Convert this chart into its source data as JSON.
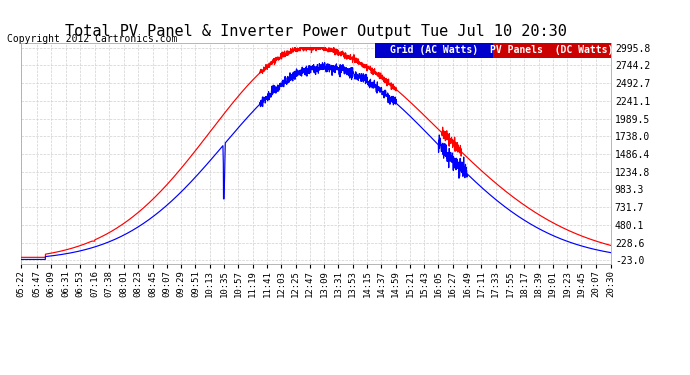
{
  "title": "Total PV Panel & Inverter Power Output Tue Jul 10 20:30",
  "copyright": "Copyright 2012 Cartronics.com",
  "legend_labels": [
    "Grid (AC Watts)",
    "PV Panels  (DC Watts)"
  ],
  "legend_bg_colors": [
    "#0000cc",
    "#cc0000"
  ],
  "legend_text_color": "#ffffff",
  "grid_color": "#cccccc",
  "grid_linestyle": "--",
  "background_color": "#ffffff",
  "plot_bg_color": "#ffffff",
  "yticks": [
    -23.0,
    228.6,
    480.1,
    731.7,
    983.3,
    1234.8,
    1486.4,
    1738.0,
    1989.5,
    2241.1,
    2492.7,
    2744.2,
    2995.8
  ],
  "xtick_labels": [
    "05:22",
    "05:47",
    "06:09",
    "06:31",
    "06:53",
    "07:16",
    "07:38",
    "08:01",
    "08:23",
    "08:45",
    "09:07",
    "09:29",
    "09:51",
    "10:13",
    "10:35",
    "10:57",
    "11:19",
    "11:41",
    "12:03",
    "12:25",
    "12:47",
    "13:09",
    "13:31",
    "13:53",
    "14:15",
    "14:37",
    "14:59",
    "15:21",
    "15:43",
    "16:05",
    "16:27",
    "16:49",
    "17:11",
    "17:33",
    "17:55",
    "18:17",
    "18:39",
    "19:01",
    "19:23",
    "19:45",
    "20:07",
    "20:30"
  ],
  "ymin": -23.0,
  "ymax": 2995.8,
  "line_blue": "#0000ff",
  "line_red": "#ff0000",
  "title_fontsize": 11,
  "copyright_fontsize": 7,
  "tick_fontsize": 7,
  "legend_fontsize": 7
}
